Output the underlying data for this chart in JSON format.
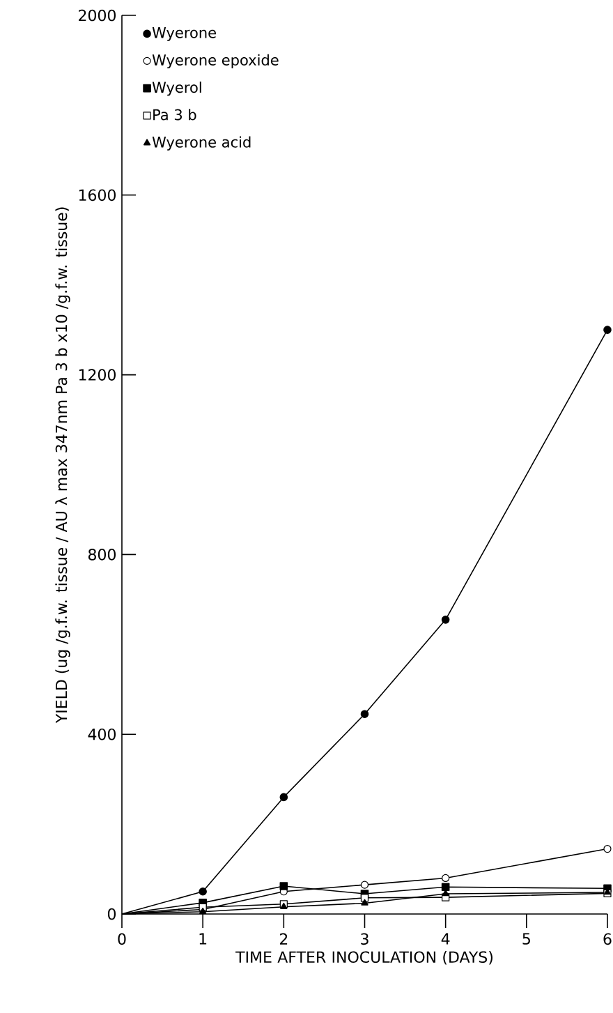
{
  "chart_data": {
    "type": "line",
    "xlabel": "TIME AFTER INOCULATION (DAYS)",
    "ylabel": "YIELD (ug /g.f.w. tissue  /  AU λ max 347nm  Pa 3  b x10 /g.f.w. tissue)",
    "x": [
      0,
      1,
      2,
      3,
      4,
      6
    ],
    "xlim": [
      0,
      6
    ],
    "xticks": [
      0,
      1,
      2,
      3,
      4,
      5,
      6
    ],
    "ylim": [
      0,
      2000
    ],
    "yticks": [
      0,
      400,
      800,
      1200,
      1600,
      2000
    ],
    "legend": "top left",
    "series": [
      {
        "name": "Wyerone",
        "color": "#000000",
        "marker": "circle",
        "values": [
          0,
          50,
          260,
          445,
          655,
          1300
        ]
      },
      {
        "name": "Wyerone epoxide",
        "color": "#000000",
        "marker": "circle",
        "values": [
          0,
          10,
          50,
          65,
          80,
          145
        ]
      },
      {
        "name": "Wyerol",
        "color": "#000000",
        "marker": "square",
        "values": [
          0,
          25,
          62,
          45,
          60,
          57
        ]
      },
      {
        "name": "Pa 3  b",
        "color": "#000000",
        "marker": "square",
        "values": [
          0,
          15,
          22,
          36,
          37,
          46
        ]
      },
      {
        "name": "Wyerone acid",
        "color": "#000000",
        "marker": "triangle",
        "values": [
          0,
          5,
          16,
          24,
          45,
          48
        ]
      }
    ]
  }
}
